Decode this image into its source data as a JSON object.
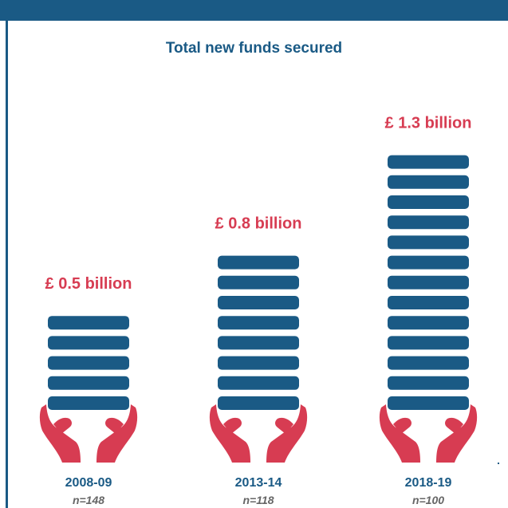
{
  "chart_data": {
    "type": "bar",
    "title": "Total new funds secured",
    "categories": [
      "2008-09",
      "2013-14",
      "2018-19"
    ],
    "values": [
      0.5,
      0.8,
      1.3
    ],
    "value_labels": [
      "£ 0.5 billion",
      "£ 0.8 billion",
      "£ 1.3 billion"
    ],
    "sample_sizes": [
      "n=148",
      "n=118",
      "n=100"
    ],
    "unit": "billion £",
    "colors": {
      "coins": "#1a5a85",
      "value_label": "#d73c52",
      "hands": "#d73c52",
      "category": "#1a5a85",
      "sample": "#666666"
    }
  }
}
